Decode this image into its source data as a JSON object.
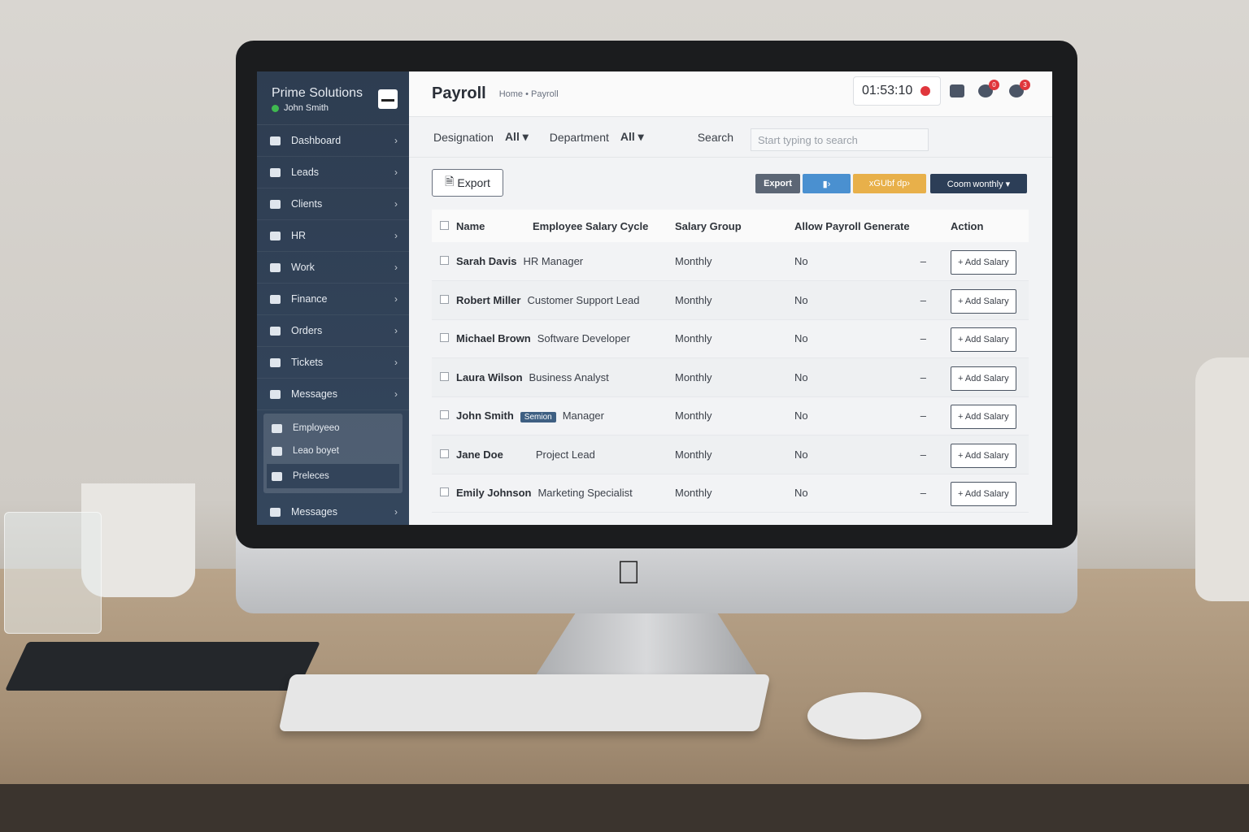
{
  "sidebar": {
    "brand": "Prime Solutions",
    "user": "John Smith",
    "items": [
      {
        "label": "Dashboard"
      },
      {
        "label": "Leads"
      },
      {
        "label": "Clients"
      },
      {
        "label": "HR"
      },
      {
        "label": "Work"
      },
      {
        "label": "Finance"
      },
      {
        "label": "Orders"
      },
      {
        "label": "Tickets"
      },
      {
        "label": "Messages"
      }
    ],
    "submenu": [
      {
        "label": "Employeeo"
      },
      {
        "label": "Leao boyet"
      },
      {
        "label": "Preleces"
      }
    ],
    "last_item": {
      "label": "Messages"
    }
  },
  "header": {
    "title": "Payroll",
    "breadcrumb": "Home • Payroll",
    "timer": "01:53:10",
    "badges": [
      "0",
      "3"
    ]
  },
  "filters": {
    "designation_label": "Designation",
    "designation_value": "All ▾",
    "department_label": "Department",
    "department_value": "All ▾",
    "search_label": "Search",
    "search_placeholder": "Start typing to search"
  },
  "toolbar": {
    "export": "Export",
    "export2": "Export",
    "blue_btn": "▮›",
    "yellow_btn": "xGUbf dp›",
    "dark_btn": "Coom wonthly ▾"
  },
  "colors": {
    "sidebar": "#2e3d51",
    "export2": "#5c6675",
    "blue": "#4a90d0",
    "yellow": "#e8b04a",
    "dark": "#2c3e57",
    "danger": "#e0363c"
  },
  "table": {
    "columns": [
      "Name",
      "Employee Salary Cycle",
      "Salary Group",
      "Allow Payroll Generate",
      "Action"
    ],
    "rows": [
      {
        "name": "Sarah Davis",
        "tag": "",
        "role": "HR Manager",
        "group": "Monthly",
        "allow": "No",
        "dash": "–",
        "action": "+ Add Salary"
      },
      {
        "name": "Robert Miller",
        "tag": "",
        "role": "Customer Support Lead",
        "group": "Monthly",
        "allow": "No",
        "dash": "–",
        "action": "+ Add Salary"
      },
      {
        "name": "Michael Brown",
        "tag": "",
        "role": "Software Developer",
        "group": "Monthly",
        "allow": "No",
        "dash": "–",
        "action": "+ Add Salary"
      },
      {
        "name": "Laura Wilson",
        "tag": "",
        "role": "Business Analyst",
        "group": "Monthly",
        "allow": "No",
        "dash": "–",
        "action": "+ Add Salary"
      },
      {
        "name": "John Smith",
        "tag": "Semion",
        "role": "Manager",
        "group": "Monthly",
        "allow": "No",
        "dash": "–",
        "action": "+ Add Salary"
      },
      {
        "name": "Jane Doe",
        "tag": "",
        "role": "Project Lead",
        "group": "Monthly",
        "allow": "No",
        "dash": "–",
        "action": "+ Add Salary"
      },
      {
        "name": "Emily Johnson",
        "tag": "",
        "role": "Marketing Specialist",
        "group": "Monthly",
        "allow": "No",
        "dash": "–",
        "action": "+ Add Salary"
      }
    ]
  }
}
